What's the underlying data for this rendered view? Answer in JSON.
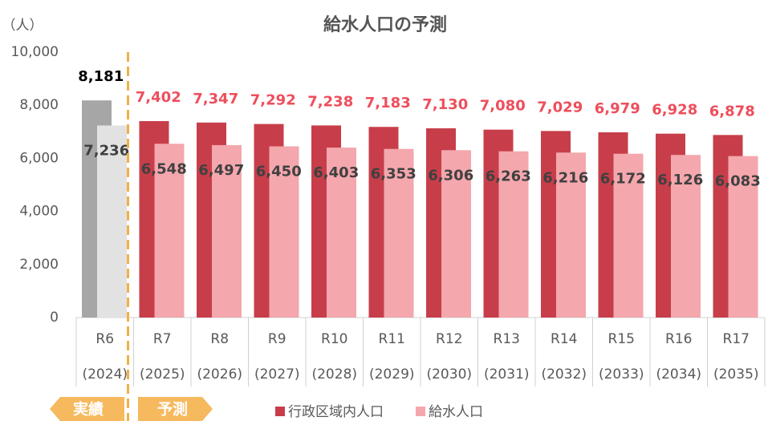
{
  "chart_data": {
    "type": "bar",
    "title": "給水人口の予測",
    "unit_label": "（人）",
    "categories": [
      "R6",
      "R7",
      "R8",
      "R9",
      "R10",
      "R11",
      "R12",
      "R13",
      "R14",
      "R15",
      "R16",
      "R17"
    ],
    "category_years": [
      "(2024)",
      "(2025)",
      "(2026)",
      "(2027)",
      "(2028)",
      "(2029)",
      "(2030)",
      "(2031)",
      "(2032)",
      "(2033)",
      "(2034)",
      "(2035)"
    ],
    "series": [
      {
        "name": "行政区域内人口",
        "color": "#c73e4a",
        "actual_color": "#a6a6a6",
        "label_color": "#ee4e5c",
        "actual_label_color": "#000000",
        "values": [
          8181,
          7402,
          7347,
          7292,
          7238,
          7183,
          7130,
          7080,
          7029,
          6979,
          6928,
          6878
        ],
        "value_labels": [
          "8,181",
          "7,402",
          "7,347",
          "7,292",
          "7,238",
          "7,183",
          "7,130",
          "7,080",
          "7,029",
          "6,979",
          "6,928",
          "6,878"
        ]
      },
      {
        "name": "給水人口",
        "color": "#f4a7ad",
        "actual_color": "#e2e2e2",
        "label_color": "#404040",
        "actual_label_color": "#404040",
        "values": [
          7236,
          6548,
          6497,
          6450,
          6403,
          6353,
          6306,
          6263,
          6216,
          6172,
          6126,
          6083
        ],
        "value_labels": [
          "7,236",
          "6,548",
          "6,497",
          "6,450",
          "6,403",
          "6,353",
          "6,306",
          "6,263",
          "6,216",
          "6,172",
          "6,126",
          "6,083"
        ]
      }
    ],
    "actual_count": 1,
    "actual_tag": "実績",
    "forecast_tag": "予測",
    "tag_color": "#f6b95e",
    "divider_color": "#f0b04a",
    "ylim": [
      0,
      10000
    ],
    "yticks": [
      0,
      {
        "value": 2000,
        "label": "2,000"
      },
      {
        "value": 4000,
        "label": "4,000"
      },
      {
        "value": 6000,
        "label": "6,000"
      },
      {
        "value": 8000,
        "label": "8,000"
      },
      {
        "value": 10000,
        "label": "10,000"
      }
    ],
    "legend": "bottom"
  }
}
